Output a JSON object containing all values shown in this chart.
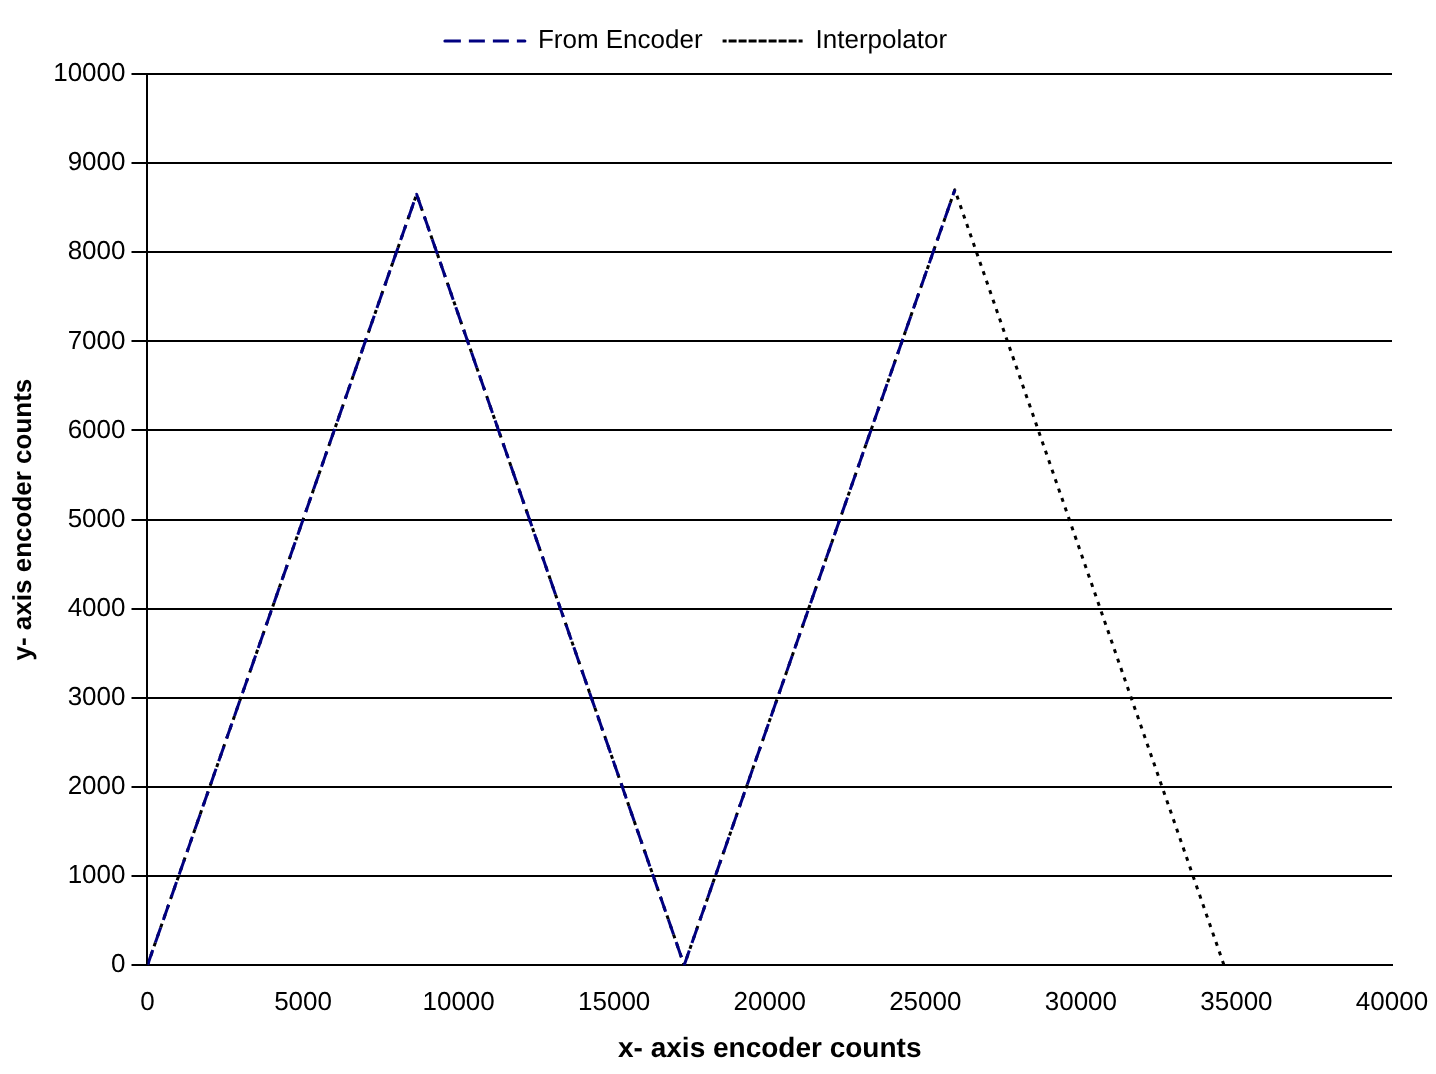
{
  "chart_data": {
    "type": "line",
    "xlabel": "x- axis encoder counts",
    "ylabel": "y- axis encoder counts",
    "xlim": [
      0,
      40000
    ],
    "xticks": [
      0,
      5000,
      10000,
      15000,
      20000,
      25000,
      30000,
      35000,
      40000
    ],
    "ylim": [
      0,
      10000
    ],
    "yticks": [
      0,
      1000,
      2000,
      3000,
      4000,
      5000,
      6000,
      7000,
      8000,
      9000,
      10000
    ],
    "grid": "y",
    "legend": "top",
    "marker": "none",
    "series": [
      {
        "name": "From Encoder",
        "color": "#000080",
        "line_style": "dashed",
        "x": [
          0,
          8650,
          17250,
          25950
        ],
        "values": [
          0,
          8650,
          0,
          8700
        ]
      },
      {
        "name": "Interpolator",
        "color": "#000000",
        "line_style": "dotted",
        "x": [
          0,
          8650,
          17250,
          25950,
          34600
        ],
        "values": [
          0,
          8650,
          0,
          8700,
          0
        ]
      }
    ]
  }
}
